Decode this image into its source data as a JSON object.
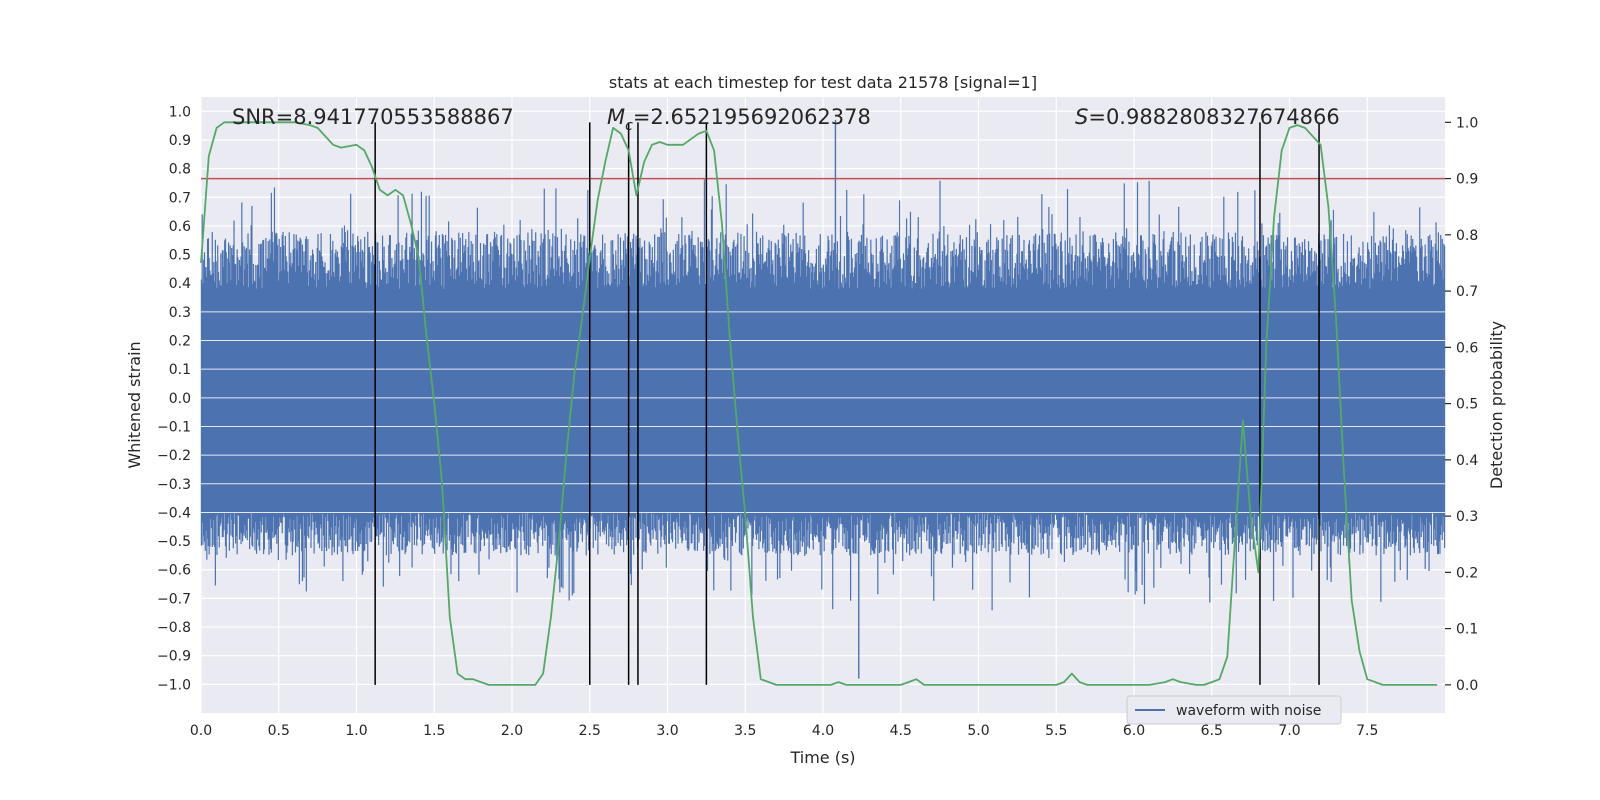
{
  "chart_data": {
    "type": "line",
    "title": "stats at each timestep for test data 21578 [signal=1]",
    "xlabel": "Time (s)",
    "ylabel_left": "Whitened strain",
    "ylabel_right": "Detection probability",
    "xlim": [
      0.0,
      8.0
    ],
    "ylim_left": [
      -1.1,
      1.05
    ],
    "ylim_right": [
      -0.05,
      1.045
    ],
    "x_ticks": [
      "0.0",
      "0.5",
      "1.0",
      "1.5",
      "2.0",
      "2.5",
      "3.0",
      "3.5",
      "4.0",
      "4.5",
      "5.0",
      "5.5",
      "6.0",
      "6.5",
      "7.0",
      "7.5"
    ],
    "y_left_ticks": [
      "1.0",
      "0.9",
      "0.8",
      "0.7",
      "0.6",
      "0.5",
      "0.4",
      "0.3",
      "0.2",
      "0.1",
      "0.0",
      "-0.1",
      "-0.2",
      "-0.3",
      "-0.4",
      "-0.5",
      "-0.6",
      "-0.7",
      "-0.8",
      "-0.9",
      "-1.0"
    ],
    "y_right_ticks": [
      "1.0",
      "0.9",
      "0.8",
      "0.7",
      "0.6",
      "0.5",
      "0.4",
      "0.3",
      "0.2",
      "0.1",
      "0.0"
    ],
    "annotations": {
      "snr": "SNR=8.941770553588867",
      "mc_symbol": "M",
      "mc_sub": "c",
      "mc_value": "=2.652195692062378",
      "s_symbol": "S",
      "s_value": "=0.9882808327674866"
    },
    "threshold": 0.9,
    "vertical_lines_x": [
      1.12,
      2.5,
      2.75,
      2.81,
      3.25,
      6.81,
      7.19
    ],
    "legend": {
      "label": "waveform with noise",
      "location": "lower-right"
    },
    "waveform": {
      "name": "waveform with noise",
      "sample_count": 1600,
      "core_band": [
        -0.4,
        0.38
      ],
      "typical_extent": [
        -0.55,
        0.58
      ],
      "peak_max": 0.97,
      "peak_min": -0.98
    },
    "probability_series": {
      "name": "detection probability",
      "x": [
        0.0,
        0.05,
        0.1,
        0.15,
        0.2,
        0.3,
        0.4,
        0.5,
        0.6,
        0.7,
        0.75,
        0.8,
        0.85,
        0.9,
        1.0,
        1.05,
        1.1,
        1.15,
        1.2,
        1.25,
        1.3,
        1.35,
        1.4,
        1.45,
        1.5,
        1.55,
        1.6,
        1.65,
        1.7,
        1.75,
        1.8,
        1.85,
        1.9,
        2.0,
        2.1,
        2.15,
        2.2,
        2.25,
        2.3,
        2.35,
        2.4,
        2.45,
        2.5,
        2.55,
        2.6,
        2.65,
        2.7,
        2.75,
        2.8,
        2.85,
        2.9,
        2.95,
        3.0,
        3.05,
        3.1,
        3.15,
        3.2,
        3.25,
        3.3,
        3.35,
        3.4,
        3.45,
        3.5,
        3.55,
        3.6,
        3.7,
        3.8,
        3.9,
        4.0,
        4.05,
        4.1,
        4.15,
        4.2,
        4.3,
        4.4,
        4.5,
        4.55,
        4.6,
        4.65,
        4.7,
        4.8,
        5.0,
        5.2,
        5.4,
        5.5,
        5.55,
        5.6,
        5.65,
        5.7,
        5.75,
        5.8,
        5.85,
        5.9,
        6.0,
        6.1,
        6.2,
        6.25,
        6.3,
        6.4,
        6.45,
        6.5,
        6.55,
        6.6,
        6.65,
        6.7,
        6.75,
        6.8,
        6.85,
        6.9,
        6.95,
        7.0,
        7.05,
        7.1,
        7.15,
        7.2,
        7.25,
        7.3,
        7.35,
        7.4,
        7.45,
        7.5,
        7.6,
        7.7,
        7.8,
        7.9,
        7.95
      ],
      "values": [
        0.75,
        0.94,
        0.99,
        1.0,
        1.0,
        1.0,
        1.0,
        1.0,
        1.0,
        0.995,
        0.99,
        0.975,
        0.96,
        0.955,
        0.96,
        0.95,
        0.92,
        0.88,
        0.87,
        0.88,
        0.87,
        0.82,
        0.76,
        0.62,
        0.5,
        0.36,
        0.12,
        0.02,
        0.01,
        0.01,
        0.005,
        0.0,
        0.0,
        0.0,
        0.0,
        0.0,
        0.02,
        0.12,
        0.25,
        0.41,
        0.55,
        0.65,
        0.76,
        0.86,
        0.93,
        0.99,
        0.98,
        0.95,
        0.87,
        0.93,
        0.96,
        0.965,
        0.96,
        0.96,
        0.96,
        0.97,
        0.98,
        0.985,
        0.95,
        0.82,
        0.62,
        0.45,
        0.3,
        0.12,
        0.01,
        0.0,
        0.0,
        0.0,
        0.0,
        0.0,
        0.005,
        0.0,
        0.0,
        0.0,
        0.0,
        0.0,
        0.005,
        0.01,
        0.0,
        0.0,
        0.0,
        0.0,
        0.0,
        0.0,
        0.0,
        0.005,
        0.02,
        0.005,
        0.0,
        0.0,
        0.0,
        0.0,
        0.0,
        0.0,
        0.0,
        0.005,
        0.01,
        0.005,
        0.0,
        0.0,
        0.005,
        0.01,
        0.05,
        0.26,
        0.47,
        0.3,
        0.2,
        0.6,
        0.83,
        0.95,
        0.99,
        0.995,
        0.99,
        0.975,
        0.96,
        0.85,
        0.65,
        0.38,
        0.15,
        0.06,
        0.01,
        0.0,
        0.0,
        0.0,
        0.0,
        0.0
      ]
    },
    "colors": {
      "plot_bg": "#eaeaf2",
      "grid": "#ffffff",
      "waveform": "#4c72b0",
      "probability": "#55a868",
      "threshold": "#c44e52",
      "vlines": "#000000",
      "text": "#262626"
    }
  }
}
